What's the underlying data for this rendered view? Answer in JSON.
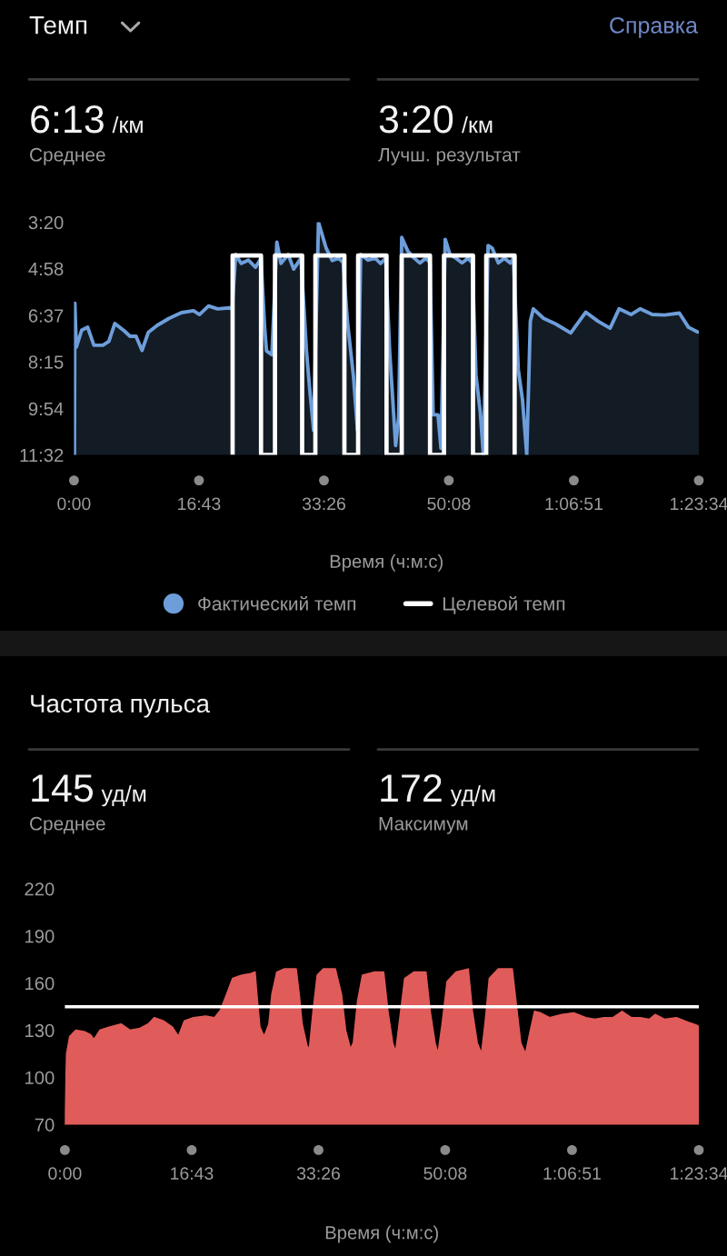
{
  "chart_data": [
    {
      "type": "area",
      "title": "Темп",
      "annotations": [
        "Справка",
        "6:13",
        "/км",
        "Среднее",
        "3:20",
        "/км",
        "Лучш. результат"
      ],
      "xlabel": "Время (ч:м:с)",
      "xlim": [
        0,
        5014
      ],
      "xticks": [
        {
          "value": 0,
          "label": "0:00"
        },
        {
          "value": 1003,
          "label": "16:43"
        },
        {
          "value": 2006,
          "label": "33:26"
        },
        {
          "value": 3008,
          "label": "50:08"
        },
        {
          "value": 4011,
          "label": "1:06:51"
        },
        {
          "value": 5014,
          "label": "1:23:34"
        }
      ],
      "ylim": [
        692,
        200
      ],
      "yticks": [
        {
          "value": 200,
          "label": "3:20"
        },
        {
          "value": 298,
          "label": "4:58"
        },
        {
          "value": 397,
          "label": "6:37"
        },
        {
          "value": 495,
          "label": "8:15"
        },
        {
          "value": 594,
          "label": "9:54"
        },
        {
          "value": 692,
          "label": "11:32"
        }
      ],
      "legend": "bottom",
      "grid": false,
      "series": [
        {
          "name": "Фактический темп",
          "type": "area",
          "color": "#6d9eda",
          "x": [
            4,
            7,
            19,
            62,
            110,
            160,
            232,
            280,
            328,
            401,
            450,
            498,
            546,
            596,
            668,
            764,
            862,
            959,
            1007,
            1080,
            1152,
            1250,
            1269,
            1298,
            1341,
            1399,
            1457,
            1501,
            1530,
            1545,
            1588,
            1628,
            1661,
            1719,
            1763,
            1821,
            1846,
            1865,
            1894,
            1923,
            1962,
            2024,
            2072,
            2122,
            2160,
            2194,
            2242,
            2275,
            2301,
            2360,
            2418,
            2460,
            2501,
            2533,
            2558,
            2581,
            2605,
            2630,
            2679,
            2727,
            2775,
            2824,
            2857,
            2882,
            2921,
            2945,
            2979,
            3017,
            3066,
            3114,
            3162,
            3197,
            3226,
            3260,
            3285,
            3323,
            3357,
            3405,
            3453,
            3502,
            3526,
            3565,
            3599,
            3633,
            3662,
            3686,
            3768,
            3866,
            3986,
            4107,
            4204,
            4302,
            4374,
            4470,
            4543,
            4640,
            4738,
            4858,
            4931,
            5004
          ],
          "values": [
            691,
            371,
            464,
            428,
            422,
            460,
            460,
            452,
            414,
            429,
            441,
            441,
            471,
            433,
            418,
            403,
            391,
            387,
            395,
            377,
            383,
            381,
            383,
            268,
            287,
            280,
            295,
            276,
            422,
            472,
            480,
            242,
            287,
            268,
            299,
            276,
            383,
            470,
            560,
            640,
            200,
            255,
            281,
            276,
            285,
            409,
            524,
            640,
            268,
            280,
            276,
            287,
            276,
            473,
            575,
            672,
            614,
            232,
            261,
            275,
            286,
            276,
            285,
            607,
            607,
            678,
            236,
            268,
            276,
            286,
            276,
            286,
            524,
            601,
            691,
            249,
            255,
            286,
            276,
            286,
            276,
            511,
            575,
            691,
            409,
            383,
            403,
            415,
            434,
            390,
            409,
            424,
            383,
            395,
            383,
            395,
            396,
            392,
            422,
            432
          ]
        },
        {
          "name": "Целевой темп",
          "type": "line",
          "color": "#ffffff",
          "x": [
            1273,
            1273,
            1501,
            1501,
            1613,
            1613,
            1831,
            1831,
            1937,
            1937,
            2170,
            2170,
            2280,
            2280,
            2508,
            2508,
            2630,
            2630,
            2857,
            2857,
            2969,
            2969,
            3202,
            3202,
            3308,
            3308,
            3536,
            3536
          ],
          "values": [
            692,
            270,
            270,
            692,
            692,
            270,
            270,
            692,
            692,
            270,
            270,
            692,
            692,
            270,
            270,
            692,
            692,
            270,
            270,
            692,
            692,
            270,
            270,
            692,
            692,
            270,
            270,
            692
          ]
        }
      ]
    },
    {
      "type": "area",
      "title": "Частота пульса",
      "annotations": [
        "145",
        "уд/м",
        "Среднее",
        "172",
        "уд/м",
        "Максимум"
      ],
      "xlabel": "Время (ч:м:с)",
      "xlim": [
        0,
        5014
      ],
      "xticks": [
        {
          "value": 0,
          "label": "0:00"
        },
        {
          "value": 1003,
          "label": "16:43"
        },
        {
          "value": 2006,
          "label": "33:26"
        },
        {
          "value": 3008,
          "label": "50:08"
        },
        {
          "value": 4011,
          "label": "1:06:51"
        },
        {
          "value": 5014,
          "label": "1:23:34"
        }
      ],
      "ylim": [
        70,
        220
      ],
      "yticks": [
        70,
        100,
        130,
        160,
        190,
        220
      ],
      "grid": false,
      "ref_lines": [
        {
          "axis": "y",
          "value": 145,
          "color": "#ffffff"
        }
      ],
      "series": [
        {
          "color": "#e05c5a",
          "x": [
            0,
            14,
            38,
            86,
            158,
            205,
            229,
            277,
            349,
            444,
            516,
            587,
            659,
            707,
            778,
            850,
            898,
            945,
            1017,
            1113,
            1184,
            1232,
            1280,
            1327,
            1399,
            1471,
            1504,
            1518,
            1542,
            1576,
            1614,
            1638,
            1676,
            1733,
            1829,
            1853,
            1876,
            1915,
            1934,
            1963,
            1996,
            2044,
            2139,
            2187,
            2220,
            2259,
            2282,
            2316,
            2354,
            2450,
            2521,
            2555,
            2592,
            2616,
            2650,
            2688,
            2760,
            2855,
            2889,
            2927,
            2951,
            2984,
            3023,
            3094,
            3190,
            3223,
            3261,
            3295,
            3323,
            3357,
            3428,
            3538,
            3572,
            3605,
            3643,
            3682,
            3715,
            3763,
            3834,
            3930,
            4025,
            4121,
            4192,
            4264,
            4335,
            4407,
            4479,
            4550,
            4622,
            4669,
            4742,
            4837,
            4933,
            5004
          ],
          "values": [
            70,
            115,
            126,
            130,
            129,
            127,
            124,
            130,
            132,
            134,
            130,
            131,
            134,
            138,
            136,
            132,
            126,
            136,
            138,
            139,
            138,
            143,
            153,
            163,
            165,
            166,
            167,
            153,
            132,
            126,
            134,
            153,
            167,
            169,
            169,
            153,
            134,
            120,
            118,
            142,
            165,
            169,
            169,
            153,
            130,
            118,
            122,
            149,
            165,
            167,
            167,
            142,
            122,
            116,
            138,
            163,
            167,
            167,
            142,
            122,
            115,
            134,
            161,
            167,
            169,
            142,
            122,
            115,
            134,
            163,
            169,
            169,
            145,
            122,
            115,
            130,
            142,
            141,
            138,
            140,
            141,
            138,
            137,
            138,
            138,
            142,
            138,
            138,
            137,
            140,
            137,
            138,
            135,
            133
          ]
        }
      ]
    }
  ]
}
